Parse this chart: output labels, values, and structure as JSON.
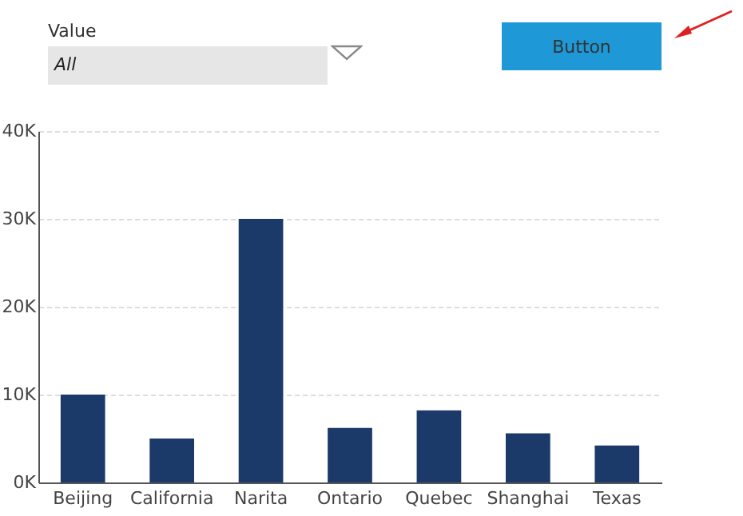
{
  "chart_data": {
    "type": "bar",
    "categories": [
      "Beijing",
      "California",
      "Narita",
      "Ontario",
      "Quebec",
      "Shanghai",
      "Texas"
    ],
    "values": [
      10000,
      5000,
      30000,
      6200,
      8200,
      5600,
      4200
    ],
    "color": "#1c3a69",
    "ylim": [
      0,
      40000
    ],
    "yticks": [
      {
        "value": 0,
        "label": "0K"
      },
      {
        "value": 10000,
        "label": "10K"
      },
      {
        "value": 20000,
        "label": "20K"
      },
      {
        "value": 30000,
        "label": "30K"
      },
      {
        "value": 40000,
        "label": "40K"
      }
    ],
    "grid": "y",
    "annotations": [
      "Value",
      "All",
      "Button"
    ]
  }
}
